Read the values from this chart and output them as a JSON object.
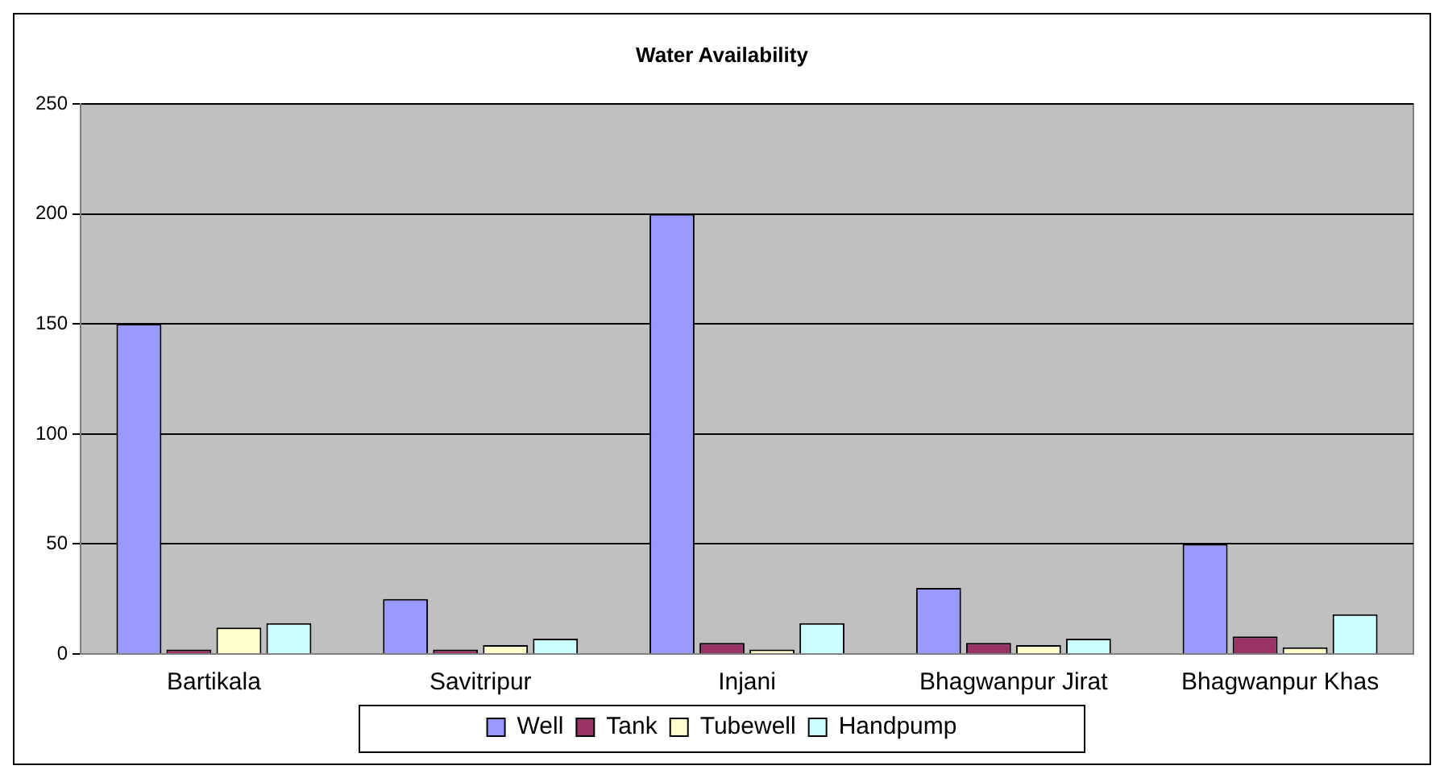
{
  "chart_data": {
    "type": "bar",
    "title": "Water Availability",
    "categories": [
      "Bartikala",
      "Savitripur",
      "Injani",
      "Bhagwanpur Jirat",
      "Bhagwanpur Khas"
    ],
    "series": [
      {
        "name": "Well",
        "color": "#9999ff",
        "values": [
          150,
          25,
          200,
          30,
          50
        ]
      },
      {
        "name": "Tank",
        "color": "#993366",
        "values": [
          2,
          2,
          5,
          5,
          8
        ]
      },
      {
        "name": "Tubewell",
        "color": "#ffffcc",
        "values": [
          12,
          4,
          2,
          4,
          3
        ]
      },
      {
        "name": "Handpump",
        "color": "#ccffff",
        "values": [
          14,
          7,
          14,
          7,
          18
        ]
      }
    ],
    "ylim": [
      0,
      250
    ],
    "yticks": [
      0,
      50,
      100,
      150,
      200,
      250
    ],
    "grid": "y",
    "legend": "bottom"
  }
}
